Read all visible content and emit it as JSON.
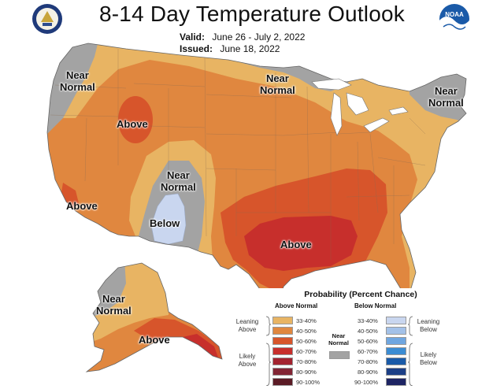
{
  "header": {
    "title": "8-14 Day Temperature Outlook",
    "valid_label": "Valid:",
    "valid_value": "June 26 - July 2, 2022",
    "issued_label": "Issued:",
    "issued_value": "June 18, 2022"
  },
  "logos": {
    "left": "doc-seal-icon",
    "right": "noaa-logo-icon",
    "noaa_text": "NOAA"
  },
  "regions": {
    "nw_near_normal": "Near\nNormal",
    "north_near_normal": "Near\nNormal",
    "ne_near_normal": "Near\nNormal",
    "idaho_above": "Above",
    "sw_near_normal": "Near\nNormal",
    "sw_below": "Below",
    "ca_above": "Above",
    "south_above": "Above",
    "ak_near_normal": "Near\nNormal",
    "ak_above": "Above"
  },
  "colors": {
    "c33_40_above": "#e8b463",
    "c40_50_above": "#e0873f",
    "c50_60_above": "#d7552b",
    "c60_70_above": "#c72f2c",
    "c70_80_above": "#a3232f",
    "c80_90_above": "#822534",
    "c90_100_above": "#5b1b25",
    "near_normal": "#a3a3a3",
    "c33_40_below": "#c9d6ef",
    "c40_50_below": "#a3c1e8",
    "c50_60_below": "#6fa6e0",
    "c60_70_below": "#3b8cd3",
    "c70_80_below": "#1a5aa8",
    "c80_90_below": "#1c3f86",
    "c90_100_below": "#1d2463"
  },
  "legend": {
    "title": "Probability (Percent Chance)",
    "above_header": "Above Normal",
    "below_header": "Below Normal",
    "near_label": "Near\nNormal",
    "leaning_above": "Leaning\nAbove",
    "likely_above": "Likely\nAbove",
    "leaning_below": "Leaning\nBelow",
    "likely_below": "Likely\nBelow",
    "ranges": [
      "33-40%",
      "40-50%",
      "50-60%",
      "60-70%",
      "70-80%",
      "80-90%",
      "90-100%"
    ]
  }
}
